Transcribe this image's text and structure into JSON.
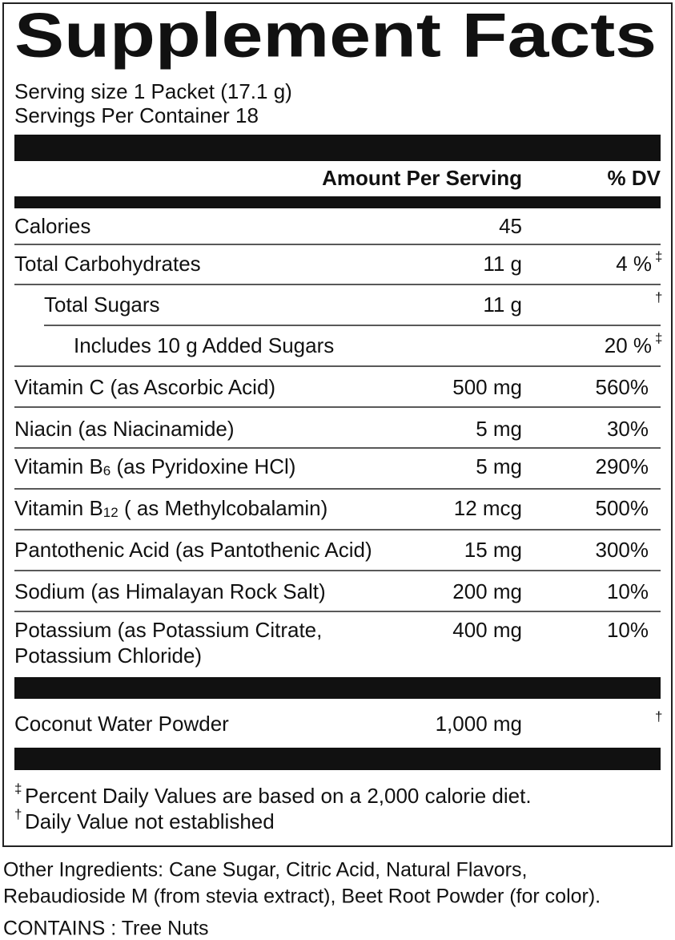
{
  "title": "Supplement Facts",
  "serving_size": "Serving size 1 Packet (17.1 g)",
  "servings_per_container": "Servings Per Container 18",
  "header": {
    "amount": "Amount Per Serving",
    "dv": "% DV"
  },
  "rows": [
    {
      "name": "Calories",
      "amount": "45"
    },
    {
      "name": "Total Carbohydrates",
      "amount": "11 g",
      "dv": "4 %",
      "mark": "‡"
    },
    {
      "name": "Total Sugars",
      "amount": "11 g",
      "mark": "†"
    },
    {
      "name": "Includes 10 g  Added Sugars",
      "dv": "20 %",
      "mark": "‡"
    },
    {
      "name": "Vitamin C (as Ascorbic Acid)",
      "amount": "500 mg",
      "dv": "560%"
    },
    {
      "name": "Niacin (as Niacinamide)",
      "amount": "5 mg",
      "dv": "30%"
    },
    {
      "name": "Vitamin B",
      "sub": "6",
      "name_rest": " (as Pyridoxine HCl)",
      "amount": "5 mg",
      "dv": "290%"
    },
    {
      "name": "Vitamin B",
      "sub": "12",
      "name_rest": " ( as Methylcobalamin)",
      "amount": "12 mcg",
      "dv": "500%"
    },
    {
      "name": "Pantothenic Acid (as Pantothenic Acid)",
      "amount": "15 mg",
      "dv": "300%"
    },
    {
      "name": "Sodium (as Himalayan Rock Salt)",
      "amount": "200 mg",
      "dv": "10%"
    },
    {
      "name": "Potassium (as Potassium Citrate,",
      "name_line2": "Potassium Chloride)",
      "amount": "400 mg",
      "dv": "10%"
    },
    {
      "name": "Coconut Water Powder",
      "amount": "1,000 mg",
      "mark": "†"
    }
  ],
  "footnotes": [
    {
      "mark": "‡",
      "text": "Percent Daily Values are based on a 2,000 calorie diet."
    },
    {
      "mark": "†",
      "text": "Daily Value not established"
    }
  ],
  "other_ingredients": [
    "Other Ingredients: Cane Sugar, Citric Acid, Natural Flavors,",
    "Rebaudioside M (from stevia extract), Beet Root Powder (for color)."
  ],
  "contains": "CONTAINS : Tree Nuts"
}
